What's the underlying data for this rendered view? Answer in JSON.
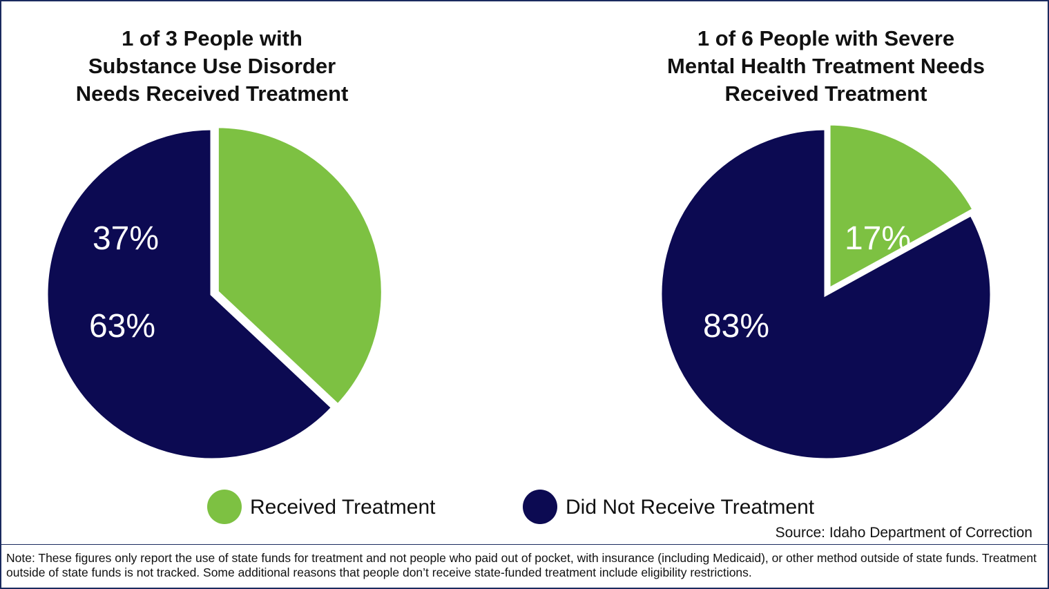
{
  "chart_data": [
    {
      "type": "pie",
      "title": [
        "1 of 3 People with",
        "Substance Use Disorder",
        "Needs Received Treatment"
      ],
      "slices": [
        {
          "name": "Received Treatment",
          "value": 37,
          "label": "37%",
          "color": "#7dc142"
        },
        {
          "name": "Did Not Receive Treatment",
          "value": 63,
          "label": "63%",
          "color": "#0c0a52"
        }
      ]
    },
    {
      "type": "pie",
      "title": [
        "1 of 6 People with Severe",
        "Mental Health Treatment Needs",
        "Received Treatment"
      ],
      "slices": [
        {
          "name": "Received Treatment",
          "value": 17,
          "label": "17%",
          "color": "#7dc142"
        },
        {
          "name": "Did Not Receive Treatment",
          "value": 83,
          "label": "83%",
          "color": "#0c0a52"
        }
      ]
    }
  ],
  "legend": [
    {
      "label": "Received Treatment",
      "color": "#7dc142"
    },
    {
      "label": "Did Not Receive Treatment",
      "color": "#0c0a52"
    }
  ],
  "source": "Source: Idaho Department of Correction",
  "note": "Note: These figures only report the use of state funds for treatment and not people who paid out of pocket, with insurance (including Medicaid), or other method outside of state funds. Treatment outside of state funds is not tracked. Some additional reasons that people don’t receive state-funded treatment include eligibility restrictions."
}
